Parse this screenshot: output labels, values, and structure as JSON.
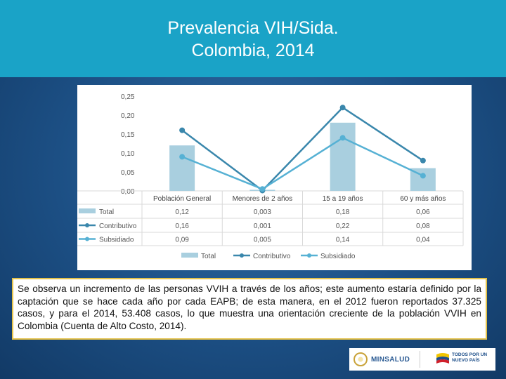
{
  "header": {
    "title_line1": "Prevalencia VIH/Sida.",
    "title_line2": "Colombia, 2014"
  },
  "chart_data": {
    "type": "bar",
    "categories": [
      "Población General",
      "Menores de 2 años",
      "15 a 19 años",
      "60 y más años"
    ],
    "ylim": [
      0,
      0.25
    ],
    "yticks": [
      "0,00",
      "0,05",
      "0,10",
      "0,15",
      "0,20",
      "0,25"
    ],
    "series": [
      {
        "name": "Total",
        "kind": "bar",
        "values": [
          0.12,
          0.003,
          0.18,
          0.06
        ],
        "labels": [
          "0,12",
          "0,003",
          "0,18",
          "0,06"
        ],
        "color": "#a9cfdf"
      },
      {
        "name": "Contributivo",
        "kind": "line",
        "values": [
          0.16,
          0.001,
          0.22,
          0.08
        ],
        "labels": [
          "0,16",
          "0,001",
          "0,22",
          "0,08"
        ],
        "color": "#3a87ac"
      },
      {
        "name": "Subsidiado",
        "kind": "line",
        "values": [
          0.09,
          0.005,
          0.14,
          0.04
        ],
        "labels": [
          "0,09",
          "0,005",
          "0,14",
          "0,04"
        ],
        "color": "#56b1d4"
      }
    ],
    "legend_position": "bottom",
    "data_table": true
  },
  "note": {
    "text": "Se observa un incremento de las personas VVIH a través de los años; este aumento estaría definido por la captación que se hace cada año por cada EAPB; de esta manera, en el 2012 fueron reportados 37.325 casos, y para el 2014, 53.408 casos, lo que muestra una orientación creciente de la población VVIH en Colombia (Cuenta de Alto Costo, 2014)."
  },
  "footer": {
    "minsalud_label": "MINSALUD",
    "todos_label_line1": "TODOS POR UN",
    "todos_label_line2": "NUEVO PAÍS"
  }
}
